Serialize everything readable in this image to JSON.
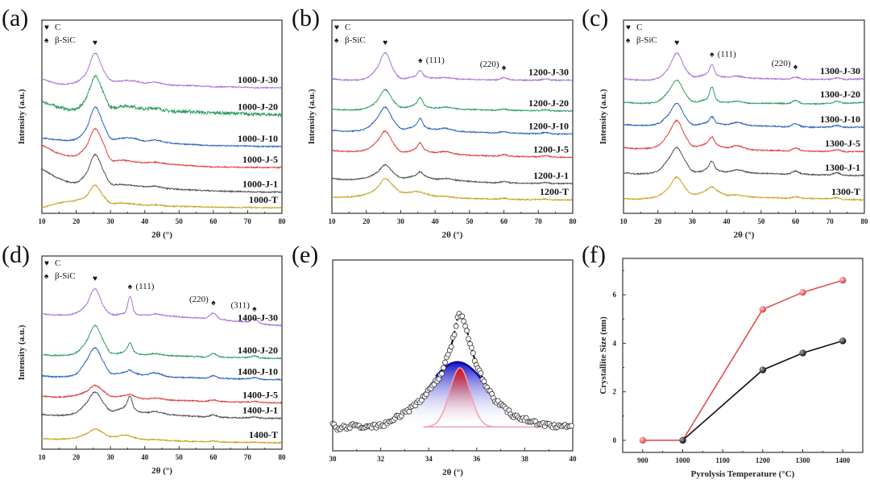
{
  "chart_data": [
    {
      "panel": "(a)",
      "type": "line",
      "xlabel": "2θ (°)",
      "ylabel": "Intensity (a.u.)",
      "xlim": [
        10,
        80
      ],
      "xticks": [
        10,
        20,
        30,
        40,
        50,
        60,
        70,
        80
      ],
      "legend": [
        {
          "symbol": "♥",
          "label": "C"
        },
        {
          "symbol": "♠",
          "label": "β-SiC"
        }
      ],
      "annotations": [
        {
          "symbol": "♥",
          "label": "",
          "x": 25.5
        }
      ],
      "x": [
        10,
        15,
        20,
        23,
        25.5,
        28,
        30,
        33,
        34.5,
        35.7,
        37,
        40,
        43,
        47,
        55,
        58,
        60,
        62,
        70,
        72,
        74,
        80
      ],
      "series": [
        {
          "name": "1000-J-30",
          "color": "#a874d8",
          "values": [
            69.6,
            67,
            68,
            73,
            83,
            74,
            69,
            68.5,
            68.7,
            68.7,
            68.5,
            67.5,
            67.8,
            66.5,
            66,
            65.7,
            65.5,
            65.5,
            65.2,
            65.1,
            65,
            65
          ]
        },
        {
          "name": "1000-J-20",
          "color": "#2e9e62",
          "values": [
            58,
            55,
            54,
            60,
            71,
            62,
            55,
            55.5,
            55.5,
            55.5,
            55,
            54,
            54.5,
            53,
            52.5,
            52,
            52,
            52,
            51.5,
            51.3,
            51.2,
            51
          ]
        },
        {
          "name": "1000-J-10",
          "color": "#2a62c4",
          "values": [
            39,
            38,
            38.5,
            44,
            55,
            46,
            39,
            38.8,
            39,
            39,
            38.7,
            37.5,
            38,
            36.5,
            35.5,
            35.2,
            35,
            35,
            34.8,
            34.7,
            34.6,
            34.6
          ]
        },
        {
          "name": "1000-J-5",
          "color": "#e0403c",
          "values": [
            35.4,
            31,
            30,
            35,
            43.7,
            36,
            28,
            27.5,
            27.3,
            27,
            26.8,
            26.2,
            26.5,
            25.5,
            24.5,
            24.2,
            24,
            24,
            23.8,
            23.8,
            23.7,
            23.7
          ]
        },
        {
          "name": "1000-J-1",
          "color": "#505050",
          "values": [
            23,
            18,
            16,
            21,
            30.4,
            22,
            15.5,
            15,
            14.8,
            14.6,
            14.4,
            13.8,
            14,
            12.8,
            12,
            11.8,
            11.6,
            11.5,
            11.2,
            11.1,
            11,
            11
          ]
        },
        {
          "name": "1000-T",
          "color": "#c9a21e",
          "values": [
            2.9,
            5.4,
            6.8,
            9,
            14.6,
            9,
            5.4,
            5.3,
            5.2,
            5,
            4.8,
            4.2,
            4.4,
            3.8,
            3.4,
            3.3,
            3.2,
            3.1,
            3,
            3,
            2.9,
            2.9
          ]
        }
      ]
    },
    {
      "panel": "(b)",
      "type": "line",
      "xlabel": "2θ (°)",
      "ylabel": "Intensity (a.u.)",
      "xlim": [
        10,
        80
      ],
      "xticks": [
        10,
        20,
        30,
        40,
        50,
        60,
        70,
        80
      ],
      "legend": [
        {
          "symbol": "♥",
          "label": "C"
        },
        {
          "symbol": "♠",
          "label": "β-SiC"
        }
      ],
      "annotations": [
        {
          "symbol": "♥",
          "label": "",
          "x": 25.5
        },
        {
          "symbol": "♠",
          "label": "(111)",
          "x": 35.7
        },
        {
          "symbol": "♠",
          "label": "(220)",
          "x": 60
        }
      ],
      "x": [
        10,
        15,
        20,
        23,
        25.5,
        28,
        30,
        33,
        34.5,
        35.7,
        37,
        40,
        43,
        47,
        55,
        58,
        60,
        62,
        70,
        72,
        74,
        80
      ],
      "series": [
        {
          "name": "1200-J-30",
          "color": "#a874d8",
          "values": [
            69.6,
            69,
            70,
            75,
            83,
            74,
            70,
            70.5,
            71.5,
            74,
            71,
            70,
            70.3,
            69.5,
            69.2,
            69.1,
            70.2,
            69.1,
            69,
            69.6,
            69,
            69
          ]
        },
        {
          "name": "1200-J-20",
          "color": "#2e9e62",
          "values": [
            54,
            53.5,
            54.5,
            58,
            64,
            58,
            55,
            55.5,
            57,
            60,
            56,
            54.5,
            55,
            54,
            53.5,
            53.4,
            54,
            53.4,
            53.2,
            53.6,
            53.1,
            53
          ]
        },
        {
          "name": "1200-J-10",
          "color": "#2a62c4",
          "values": [
            43,
            42.5,
            44,
            49,
            55,
            48,
            44,
            44.5,
            46,
            49,
            45,
            43.5,
            44,
            42.5,
            41.8,
            41.7,
            42.3,
            41.6,
            41.3,
            41.8,
            41.2,
            41
          ]
        },
        {
          "name": "1200-J-5",
          "color": "#e0403c",
          "values": [
            32.5,
            32,
            33,
            37,
            42.5,
            36,
            32,
            32.5,
            34,
            36.5,
            33,
            31.5,
            32,
            30.5,
            29.8,
            29.7,
            30.4,
            29.6,
            29.3,
            29.8,
            29.2,
            29
          ]
        },
        {
          "name": "1200-J-1",
          "color": "#505050",
          "values": [
            18,
            17.5,
            18.5,
            21,
            25,
            21,
            18.5,
            19,
            20,
            21.5,
            19.5,
            17.8,
            18,
            17,
            16,
            15.9,
            16.5,
            15.8,
            15.6,
            16,
            15.5,
            15.4
          ]
        },
        {
          "name": "1200-T",
          "color": "#c9a21e",
          "values": [
            8.3,
            8.5,
            10,
            13,
            18,
            14,
            11,
            11,
            11.3,
            11,
            10.3,
            9,
            8.8,
            8,
            7.5,
            7.4,
            7.8,
            7.3,
            7.1,
            7.4,
            7,
            7
          ]
        }
      ]
    },
    {
      "panel": "(c)",
      "type": "line",
      "xlabel": "2θ (°)",
      "ylabel": "Intensity (a.u.)",
      "xlim": [
        10,
        80
      ],
      "xticks": [
        10,
        20,
        30,
        40,
        50,
        60,
        70,
        80
      ],
      "legend": [
        {
          "symbol": "♥",
          "label": "C"
        },
        {
          "symbol": "♠",
          "label": "β-SiC"
        }
      ],
      "annotations": [
        {
          "symbol": "♥",
          "label": "",
          "x": 25.5
        },
        {
          "symbol": "♠",
          "label": "(111)",
          "x": 35.7
        },
        {
          "symbol": "♠",
          "label": "(220)",
          "x": 60
        }
      ],
      "x": [
        10,
        15,
        20,
        23,
        25.5,
        28,
        30,
        33,
        34.5,
        35.7,
        37,
        40,
        43,
        47,
        55,
        58,
        60,
        62,
        70,
        72,
        74,
        80
      ],
      "series": [
        {
          "name": "1300-J-30",
          "color": "#a874d8",
          "values": [
            69.6,
            69,
            70,
            75,
            83,
            75,
            71,
            71.5,
            73,
            77,
            72,
            70.5,
            71,
            70,
            69.6,
            69.5,
            70.5,
            69.5,
            69.4,
            70,
            69.4,
            69.6
          ]
        },
        {
          "name": "1300-J-20",
          "color": "#2e9e62",
          "values": [
            57.5,
            57,
            58,
            63,
            69,
            62,
            58,
            58.5,
            60,
            65.4,
            59,
            57.5,
            58,
            57,
            57,
            56.9,
            58.5,
            56.9,
            57,
            58,
            57,
            57.5
          ]
        },
        {
          "name": "1300-J-10",
          "color": "#2a62c4",
          "values": [
            46,
            45.5,
            46.5,
            51,
            57,
            50,
            46,
            46.5,
            47.5,
            50,
            47,
            46,
            47,
            45.5,
            45,
            44.9,
            46.5,
            44.9,
            44.7,
            45.5,
            44.6,
            44.6
          ]
        },
        {
          "name": "1300-J-5",
          "color": "#e0403c",
          "values": [
            34,
            33.5,
            35,
            41,
            48,
            40,
            35,
            35.5,
            37,
            39.6,
            36,
            34,
            35,
            33,
            32.5,
            32.4,
            33.8,
            32.4,
            32.2,
            33,
            32,
            32
          ]
        },
        {
          "name": "1300-J-1",
          "color": "#505050",
          "values": [
            21,
            20.5,
            22,
            28,
            34,
            27,
            22,
            22,
            24,
            27,
            23,
            21.5,
            22.5,
            21,
            20.5,
            20.4,
            21.8,
            20.4,
            20,
            21,
            19.8,
            19.6
          ]
        },
        {
          "name": "1300-T",
          "color": "#c9a21e",
          "values": [
            7.5,
            7.5,
            9,
            13,
            18.8,
            13,
            10,
            11,
            12.5,
            13.8,
            12,
            9.5,
            9.5,
            8.5,
            8,
            7.9,
            8.6,
            7.9,
            7.6,
            8,
            7.2,
            7
          ]
        }
      ]
    },
    {
      "panel": "(d)",
      "type": "line",
      "xlabel": "2θ (°)",
      "ylabel": "Intensity (a.u.)",
      "xlim": [
        10,
        80
      ],
      "xticks": [
        10,
        20,
        30,
        40,
        50,
        60,
        70,
        80
      ],
      "legend": [
        {
          "symbol": "♥",
          "label": "C"
        },
        {
          "symbol": "♠",
          "label": "β-SiC"
        }
      ],
      "annotations": [
        {
          "symbol": "♥",
          "label": "",
          "x": 25.5
        },
        {
          "symbol": "♠",
          "label": "(111)",
          "x": 35.7
        },
        {
          "symbol": "♠",
          "label": "(220)",
          "x": 60
        },
        {
          "symbol": "♠",
          "label": "(311)",
          "x": 72
        }
      ],
      "x": [
        10,
        15,
        20,
        23,
        25.5,
        28,
        30,
        33,
        34.5,
        35.7,
        37,
        40,
        43,
        47,
        55,
        58,
        60,
        62,
        70,
        72,
        74,
        80
      ],
      "series": [
        {
          "name": "1400-J-30",
          "color": "#a874d8",
          "values": [
            70,
            69.5,
            70.5,
            75,
            83,
            74,
            70,
            70,
            71.5,
            79,
            71,
            69.5,
            70,
            69,
            68,
            68,
            70.5,
            67.5,
            66,
            67.5,
            65,
            64
          ]
        },
        {
          "name": "1400-J-20",
          "color": "#2e9e62",
          "values": [
            49,
            48.5,
            50,
            56,
            64,
            56,
            50,
            50,
            51.5,
            55,
            50.5,
            49,
            49.5,
            48.5,
            48,
            47.8,
            49.5,
            47.8,
            47.5,
            48.2,
            47.2,
            47
          ]
        },
        {
          "name": "1400-J-10",
          "color": "#2a62c4",
          "values": [
            38,
            37.5,
            39,
            46,
            52.5,
            45,
            39.5,
            39.5,
            40,
            41,
            39.5,
            38.5,
            39.5,
            37.5,
            37,
            36.8,
            38,
            36.8,
            36.5,
            37,
            36.2,
            36
          ]
        },
        {
          "name": "1400-J-5",
          "color": "#e0403c",
          "values": [
            27.5,
            27,
            28,
            30,
            33,
            30,
            27.5,
            27.5,
            28,
            28.5,
            27.5,
            26,
            26.5,
            25.5,
            25,
            24.8,
            25.5,
            24.7,
            24.4,
            24.8,
            24.2,
            24
          ]
        },
        {
          "name": "1400-J-1",
          "color": "#505050",
          "values": [
            18,
            17.5,
            19,
            24,
            29.6,
            24,
            20,
            21,
            23,
            27.5,
            21,
            19,
            19.5,
            18,
            17,
            16.8,
            17.8,
            16.6,
            16.3,
            16.8,
            16.1,
            16
          ]
        },
        {
          "name": "1400-T",
          "color": "#c9a21e",
          "values": [
            5.4,
            5.2,
            6,
            8,
            10.4,
            8.5,
            6.5,
            7,
            7.3,
            6.8,
            6,
            5,
            5,
            4.5,
            4,
            3.9,
            4.2,
            3.8,
            3.5,
            3.7,
            3.4,
            3.3
          ]
        }
      ]
    },
    {
      "panel": "(e)",
      "type": "scatter",
      "xlabel": "2θ (°)",
      "xlim": [
        30,
        40
      ],
      "xticks": [
        30,
        32,
        34,
        36,
        38,
        40
      ],
      "ylim": [
        0,
        100
      ],
      "x": [
        30,
        30.25,
        30.5,
        30.75,
        31,
        31.25,
        31.5,
        31.75,
        32,
        32.25,
        32.5,
        32.75,
        33,
        33.25,
        33.5,
        33.75,
        34,
        34.25,
        34.5,
        34.75,
        35,
        35.25,
        35.5,
        35.75,
        36,
        36.25,
        36.5,
        36.75,
        37,
        37.25,
        37.5,
        37.75,
        38,
        38.25,
        38.5,
        38.75,
        39,
        39.25,
        39.5,
        39.75,
        40
      ],
      "observed": [
        13,
        12,
        12.5,
        12.8,
        13,
        12.7,
        12.5,
        12.8,
        13.5,
        14.5,
        16,
        18,
        20,
        22,
        25,
        28,
        31,
        35,
        40,
        48,
        58,
        71,
        67,
        55,
        45,
        38,
        32,
        27,
        24,
        21,
        19,
        17.5,
        16.5,
        15.5,
        14.5,
        14,
        13.5,
        13.2,
        13,
        12.8,
        13
      ],
      "baseline": 12.5,
      "components": [
        {
          "color": "#1a1ad0",
          "center": 35.2,
          "amplitude": 34,
          "fwhm": 3.0
        },
        {
          "color": "#e01818",
          "center": 35.3,
          "amplitude": 31,
          "fwhm": 1.0
        }
      ]
    },
    {
      "panel": "(f)",
      "type": "line",
      "xlabel": "Pyrolysis Temperature (°C)",
      "ylabel": "Crystallite Size (nm)",
      "xlim": [
        850,
        1450
      ],
      "ylim": [
        -0.5,
        7.5
      ],
      "xticks": [
        900,
        1000,
        1100,
        1200,
        1300,
        1400
      ],
      "yticks": [
        0,
        2,
        4,
        6
      ],
      "series": [
        {
          "color": "#e05050",
          "x": [
            900,
            1000,
            1200,
            1300,
            1400
          ],
          "values": [
            0,
            0,
            5.4,
            6.1,
            6.6
          ]
        },
        {
          "color": "#111111",
          "x": [
            1000,
            1200,
            1300,
            1400
          ],
          "values": [
            0,
            2.9,
            3.6,
            4.1
          ]
        }
      ]
    }
  ]
}
